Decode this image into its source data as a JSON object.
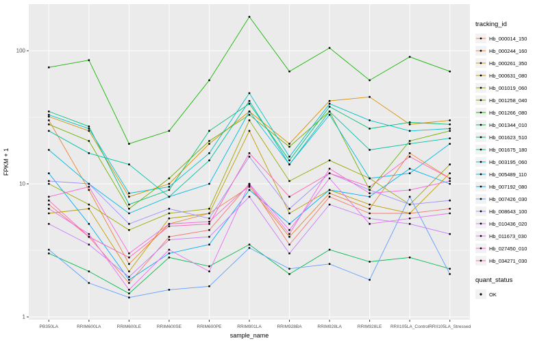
{
  "chart_data": {
    "type": "line",
    "title": "",
    "xlabel": "sample_name",
    "ylabel": "FPKM + 1",
    "y_scale": "log10",
    "y_ticks": [
      1,
      10,
      100
    ],
    "y_tick_labels": [
      "1",
      "10",
      "100"
    ],
    "ylim": [
      1,
      220
    ],
    "grid": "on",
    "plot_background": "#EBEBEB",
    "gridline_color": "#FFFFFF",
    "point_color": "#000000",
    "legend_position": "right",
    "categories": [
      "PB350LA",
      "RRIM600LA",
      "RRIM600LE",
      "RRIM600SE",
      "RRIM600PE",
      "RRIM901LA",
      "RRIM928BA",
      "RRIM928LA",
      "RRIM928LE",
      "RRII105LA_Control",
      "RRII105LA_Stressed"
    ],
    "series": [
      {
        "name": "Hb_000014_150",
        "color": "#F8766D",
        "values": [
          7.0,
          4.0,
          1.8,
          4.0,
          4.5,
          10.0,
          3.5,
          8.0,
          6.0,
          6.0,
          6.5
        ]
      },
      {
        "name": "Hb_000244_160",
        "color": "#EB8335",
        "values": [
          30.0,
          9.0,
          2.5,
          5.0,
          6.0,
          9.5,
          4.0,
          8.5,
          6.5,
          17.0,
          11.0
        ]
      },
      {
        "name": "Hb_000261_350",
        "color": "#D89000",
        "values": [
          32.0,
          25.0,
          8.0,
          10.0,
          20.0,
          35.0,
          20.0,
          42.0,
          45.0,
          28.0,
          30.0
        ]
      },
      {
        "name": "Hb_000631_080",
        "color": "#BE9C00",
        "values": [
          6.0,
          6.5,
          2.2,
          5.5,
          6.0,
          25.0,
          6.0,
          9.0,
          7.0,
          6.0,
          12.0
        ]
      },
      {
        "name": "Hb_001019_060",
        "color": "#9CA700",
        "values": [
          10.0,
          7.0,
          4.5,
          6.0,
          6.5,
          30.0,
          10.5,
          15.0,
          11.0,
          7.0,
          14.0
        ]
      },
      {
        "name": "Hb_001258_040",
        "color": "#6FB000",
        "values": [
          28.0,
          21.0,
          6.5,
          11.0,
          21.0,
          33.0,
          19.0,
          35.0,
          9.0,
          21.0,
          25.0
        ]
      },
      {
        "name": "Hb_001266_080",
        "color": "#13B600",
        "values": [
          75.0,
          85.0,
          20.0,
          25.0,
          60.0,
          180.0,
          70.0,
          105.0,
          60.0,
          90.0,
          70.0
        ]
      },
      {
        "name": "Hb_001344_010",
        "color": "#00BB4B",
        "values": [
          3.0,
          2.2,
          1.5,
          2.8,
          2.4,
          3.5,
          2.1,
          3.2,
          2.6,
          2.8,
          2.3
        ]
      },
      {
        "name": "Hb_001623_510",
        "color": "#00BF7D",
        "values": [
          35.0,
          27.0,
          7.0,
          9.0,
          25.0,
          40.0,
          15.0,
          38.0,
          26.0,
          29.0,
          28.0
        ]
      },
      {
        "name": "Hb_001675_180",
        "color": "#00C1A7",
        "values": [
          25.0,
          17.0,
          14.0,
          8.0,
          15.0,
          42.0,
          14.0,
          35.0,
          18.0,
          20.0,
          22.0
        ]
      },
      {
        "name": "Hb_003195_060",
        "color": "#00BFC8",
        "values": [
          33.0,
          26.0,
          8.5,
          9.5,
          17.0,
          48.0,
          16.0,
          40.0,
          30.0,
          25.0,
          26.0
        ]
      },
      {
        "name": "Hb_005489_110",
        "color": "#00B9E3",
        "values": [
          18.0,
          10.0,
          6.0,
          8.0,
          10.0,
          35.0,
          14.0,
          33.0,
          11.0,
          12.0,
          20.0
        ]
      },
      {
        "name": "Hb_007192_080",
        "color": "#00AEF8",
        "values": [
          12.0,
          5.0,
          1.9,
          3.0,
          3.5,
          9.0,
          5.0,
          9.0,
          8.0,
          13.0,
          10.0
        ]
      },
      {
        "name": "Hb_007426_030",
        "color": "#5E9DFF",
        "values": [
          3.2,
          1.8,
          1.4,
          1.6,
          1.7,
          3.3,
          2.3,
          2.5,
          1.9,
          8.0,
          2.1
        ]
      },
      {
        "name": "Hb_008643_100",
        "color": "#9C8DFF",
        "values": [
          10.5,
          10.0,
          5.0,
          6.5,
          5.5,
          16.0,
          6.5,
          12.0,
          9.0,
          7.0,
          7.5
        ]
      },
      {
        "name": "Hb_010436_020",
        "color": "#C77CFF",
        "values": [
          5.0,
          3.5,
          2.0,
          3.8,
          4.0,
          8.0,
          3.0,
          7.0,
          5.5,
          5.0,
          4.2
        ]
      },
      {
        "name": "Hb_011673_030",
        "color": "#E670F0",
        "values": [
          6.5,
          4.2,
          1.6,
          3.2,
          2.2,
          10.0,
          4.5,
          11.0,
          5.0,
          5.5,
          6.0
        ]
      },
      {
        "name": "Hb_027450_010",
        "color": "#F863DF",
        "values": [
          8.0,
          9.5,
          3.0,
          5.0,
          5.2,
          9.8,
          4.2,
          13.0,
          8.5,
          9.0,
          10.5
        ]
      },
      {
        "name": "Hb_034271_030",
        "color": "#FF62BA",
        "values": [
          7.5,
          4.0,
          2.8,
          4.8,
          5.0,
          17.0,
          8.0,
          12.0,
          9.5,
          16.0,
          11.0
        ]
      }
    ],
    "legend": {
      "tracking_title": "tracking_id",
      "quant_title": "quant_status",
      "quant_label": "OK"
    }
  }
}
